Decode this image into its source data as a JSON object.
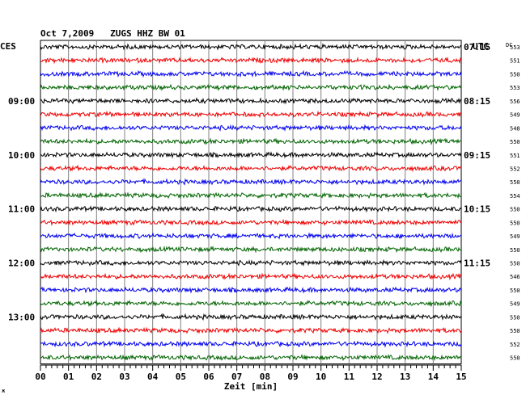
{
  "chart_data": {
    "type": "line",
    "title": "Oct 7,2009   ZUGS HHZ BW 01",
    "left_axis_label": "CES",
    "right_axis_label": "UTC",
    "dc_label": "DC",
    "xlabel": "Zeit [min]",
    "xlim": [
      0,
      15
    ],
    "x_ticks": [
      "00",
      "01",
      "02",
      "03",
      "04",
      "05",
      "06",
      "07",
      "08",
      "09",
      "10",
      "11",
      "12",
      "13",
      "14",
      "15"
    ],
    "left_hour_labels": [
      {
        "trace": 4,
        "label": "09:00"
      },
      {
        "trace": 8,
        "label": "10:00"
      },
      {
        "trace": 12,
        "label": "11:00"
      },
      {
        "trace": 16,
        "label": "12:00"
      },
      {
        "trace": 20,
        "label": "13:00"
      }
    ],
    "right_hour_labels": [
      {
        "trace": 0,
        "label": "07:15"
      },
      {
        "trace": 4,
        "label": "08:15"
      },
      {
        "trace": 8,
        "label": "09:15"
      },
      {
        "trace": 12,
        "label": "10:15"
      },
      {
        "trace": 16,
        "label": "11:15"
      }
    ],
    "trace_colors": [
      "#000000",
      "#ee0000",
      "#0000ee",
      "#006400"
    ],
    "dc_values": [
      553,
      551,
      550,
      553,
      556,
      549,
      548,
      550,
      551,
      552,
      550,
      554,
      550,
      550,
      549,
      550,
      550,
      546,
      550,
      549,
      550,
      550,
      552,
      550
    ],
    "grid": true
  },
  "corner_mark": "ж"
}
